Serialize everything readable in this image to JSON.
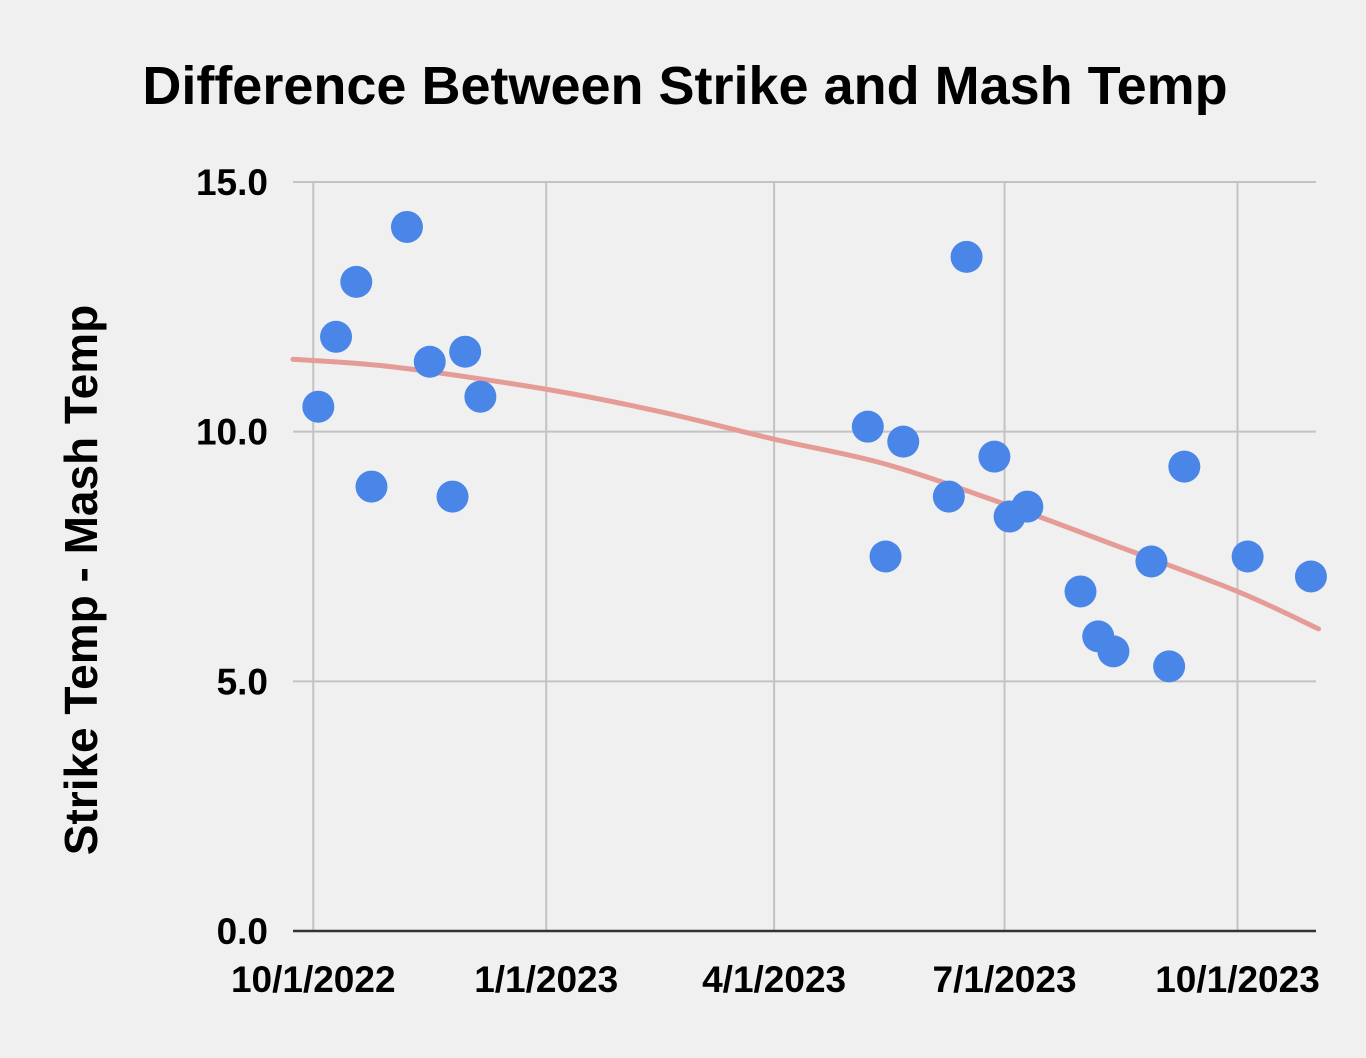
{
  "chart_data": {
    "type": "scatter",
    "title": "Difference Between Strike and Mash Temp",
    "xlabel": "",
    "ylabel": "Strike Temp - Mash Temp",
    "x_axis_type": "date",
    "xlim": [
      "2022-09-23",
      "2023-11-01"
    ],
    "ylim": [
      0,
      15
    ],
    "x_ticks": [
      {
        "date": "2022-10-01",
        "label": "10/1/2022"
      },
      {
        "date": "2023-01-01",
        "label": "1/1/2023"
      },
      {
        "date": "2023-04-01",
        "label": "4/1/2023"
      },
      {
        "date": "2023-07-01",
        "label": "7/1/2023"
      },
      {
        "date": "2023-10-01",
        "label": "10/1/2023"
      }
    ],
    "y_ticks": [
      {
        "value": 0,
        "label": "0.0"
      },
      {
        "value": 5,
        "label": "5.0"
      },
      {
        "value": 10,
        "label": "10.0"
      },
      {
        "value": 15,
        "label": "15.0"
      }
    ],
    "grid": true,
    "legend": "none",
    "series": [
      {
        "color": "#4a86e8",
        "points": [
          {
            "x": "2022-10-03",
            "y": 10.5
          },
          {
            "x": "2022-10-10",
            "y": 11.9
          },
          {
            "x": "2022-10-18",
            "y": 13.0
          },
          {
            "x": "2022-10-24",
            "y": 8.9
          },
          {
            "x": "2022-11-07",
            "y": 14.1
          },
          {
            "x": "2022-11-16",
            "y": 11.4
          },
          {
            "x": "2022-11-25",
            "y": 8.7
          },
          {
            "x": "2022-11-30",
            "y": 11.6
          },
          {
            "x": "2022-12-06",
            "y": 10.7
          },
          {
            "x": "2023-05-08",
            "y": 10.1
          },
          {
            "x": "2023-05-15",
            "y": 7.5
          },
          {
            "x": "2023-05-22",
            "y": 9.8
          },
          {
            "x": "2023-06-09",
            "y": 8.7
          },
          {
            "x": "2023-06-16",
            "y": 13.5
          },
          {
            "x": "2023-06-27",
            "y": 9.5
          },
          {
            "x": "2023-07-03",
            "y": 8.3
          },
          {
            "x": "2023-07-10",
            "y": 8.5
          },
          {
            "x": "2023-07-31",
            "y": 6.8
          },
          {
            "x": "2023-08-07",
            "y": 5.9
          },
          {
            "x": "2023-08-13",
            "y": 5.6
          },
          {
            "x": "2023-08-28",
            "y": 7.4
          },
          {
            "x": "2023-09-04",
            "y": 5.3
          },
          {
            "x": "2023-09-10",
            "y": 9.3
          },
          {
            "x": "2023-10-05",
            "y": 7.5
          },
          {
            "x": "2023-10-30",
            "y": 7.1
          }
        ]
      }
    ],
    "trendline": {
      "type": "polynomial",
      "color": "#e69c96",
      "points": [
        {
          "x": "2022-09-23",
          "y": 11.45
        },
        {
          "x": "2022-11-01",
          "y": 11.3
        },
        {
          "x": "2023-01-01",
          "y": 10.85
        },
        {
          "x": "2023-02-15",
          "y": 10.4
        },
        {
          "x": "2023-04-01",
          "y": 9.85
        },
        {
          "x": "2023-05-15",
          "y": 9.35
        },
        {
          "x": "2023-07-01",
          "y": 8.55
        },
        {
          "x": "2023-08-15",
          "y": 7.7
        },
        {
          "x": "2023-10-01",
          "y": 6.8
        },
        {
          "x": "2023-11-02",
          "y": 6.05
        }
      ]
    }
  }
}
